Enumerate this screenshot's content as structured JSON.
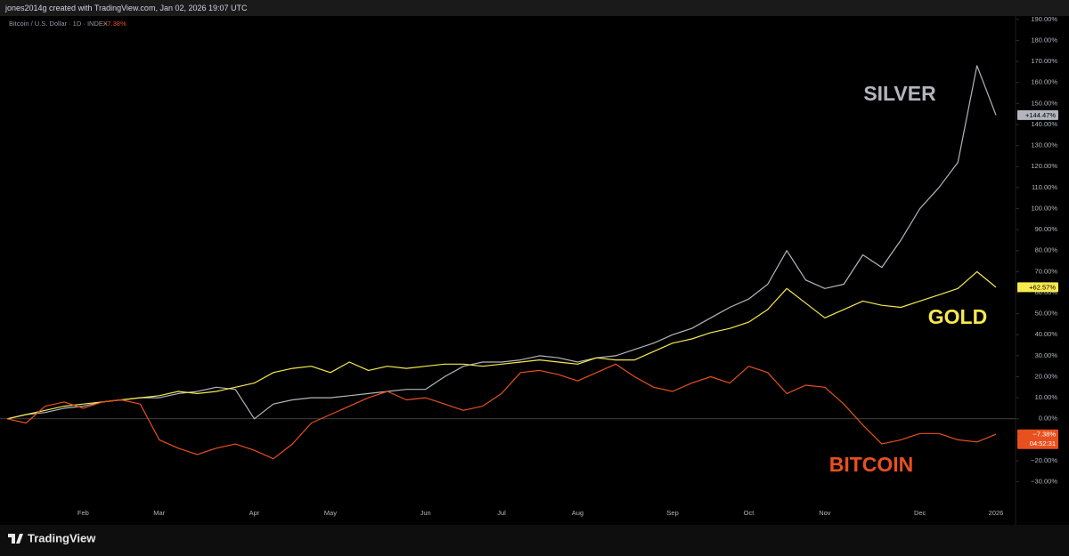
{
  "header": {
    "credit": "jones2014g created with TradingView.com, Jan 02, 2026 19:07 UTC",
    "symbol": "Bitcoin / U.S. Dollar · 1D · INDEX",
    "symbol_change": "−7.38%"
  },
  "footer": {
    "brand": "TradingView"
  },
  "chart_data": {
    "type": "line",
    "categories": [
      null,
      null,
      null,
      null,
      "Feb",
      null,
      null,
      null,
      "Mar",
      null,
      null,
      null,
      null,
      "Apr",
      null,
      null,
      null,
      "May",
      null,
      null,
      null,
      null,
      "Jun",
      null,
      null,
      null,
      "Jul",
      null,
      null,
      null,
      "Aug",
      null,
      null,
      null,
      null,
      "Sep",
      null,
      null,
      null,
      "Oct",
      null,
      null,
      null,
      "Nov",
      null,
      null,
      null,
      null,
      "Dec",
      null,
      null,
      null,
      "2026"
    ],
    "series": [
      {
        "name": "SILVER",
        "color": "#b2b5be",
        "values": [
          0,
          2,
          3,
          5,
          6,
          8,
          9,
          10,
          10,
          12,
          13,
          15,
          14,
          0,
          7,
          9,
          10,
          10,
          11,
          12,
          13,
          14,
          14,
          20,
          25,
          27,
          27,
          28,
          30,
          29,
          27,
          29,
          30,
          33,
          36,
          40,
          43,
          48,
          53,
          57,
          64,
          80,
          66,
          62,
          64,
          78,
          72,
          85,
          100,
          110,
          122,
          168,
          144.47
        ],
        "value_labels": [
          null,
          null,
          null,
          null,
          null,
          null,
          null,
          null,
          null,
          null,
          null,
          null,
          null,
          null,
          null,
          null,
          null,
          null,
          null,
          null,
          null,
          null,
          null,
          null,
          null,
          null,
          null,
          null,
          null,
          null,
          null,
          null,
          null,
          null,
          null,
          null,
          null,
          null,
          null,
          null,
          null,
          null,
          null,
          null,
          null,
          null,
          null,
          null,
          null,
          null,
          null,
          null,
          "+144.47%"
        ]
      },
      {
        "name": "GOLD",
        "color": "#f7e94f",
        "values": [
          0,
          2,
          4,
          6,
          7,
          8,
          9,
          10,
          11,
          13,
          12,
          13,
          15,
          17,
          22,
          24,
          25,
          22,
          27,
          23,
          25,
          24,
          25,
          26,
          26,
          25,
          26,
          27,
          28,
          27,
          26,
          29,
          28,
          28,
          32,
          36,
          38,
          41,
          43,
          46,
          52,
          62,
          55,
          48,
          52,
          56,
          54,
          53,
          56,
          59,
          62,
          70,
          62.57
        ],
        "value_labels": [
          null,
          null,
          null,
          null,
          null,
          null,
          null,
          null,
          null,
          null,
          null,
          null,
          null,
          null,
          null,
          null,
          null,
          null,
          null,
          null,
          null,
          null,
          null,
          null,
          null,
          null,
          null,
          null,
          null,
          null,
          null,
          null,
          null,
          null,
          null,
          null,
          null,
          null,
          null,
          null,
          null,
          null,
          null,
          null,
          null,
          null,
          null,
          null,
          null,
          null,
          null,
          null,
          "+62.57%"
        ]
      },
      {
        "name": "BITCOIN",
        "color": "#e8501e",
        "values": [
          0,
          -2,
          6,
          8,
          5,
          8,
          9,
          7,
          -10,
          -14,
          -17,
          -14,
          -12,
          -15,
          -19,
          -12,
          -2,
          2,
          6,
          10,
          13,
          9,
          10,
          7,
          4,
          6,
          12,
          22,
          23,
          21,
          18,
          22,
          26,
          20,
          15,
          13,
          17,
          20,
          17,
          25,
          22,
          12,
          16,
          15,
          7,
          -3,
          -12,
          -10,
          -7,
          -7,
          -10,
          -11,
          -7.38
        ],
        "value_labels": [
          null,
          null,
          null,
          null,
          null,
          null,
          null,
          null,
          null,
          null,
          null,
          null,
          null,
          null,
          null,
          null,
          null,
          null,
          null,
          null,
          null,
          null,
          null,
          null,
          null,
          null,
          null,
          null,
          null,
          null,
          null,
          null,
          null,
          null,
          null,
          null,
          null,
          null,
          null,
          null,
          null,
          null,
          null,
          null,
          null,
          null,
          null,
          null,
          null,
          null,
          null,
          null,
          "−7.38%"
        ]
      }
    ],
    "countdown": "04:52:31",
    "ylim": [
      -42,
      195
    ],
    "yticks": [
      {
        "value": -30,
        "label": "−30.00%"
      },
      {
        "value": -20,
        "label": "−20.00%"
      },
      {
        "value": -10,
        "label": "−10.00%"
      },
      {
        "value": 0,
        "label": "0.00%"
      },
      {
        "value": 10,
        "label": "10.00%"
      },
      {
        "value": 20,
        "label": "20.00%"
      },
      {
        "value": 30,
        "label": "30.00%"
      },
      {
        "value": 40,
        "label": "40.00%"
      },
      {
        "value": 50,
        "label": "50.00%"
      },
      {
        "value": 60,
        "label": "60.00%"
      },
      {
        "value": 70,
        "label": "70.00%"
      },
      {
        "value": 80,
        "label": "80.00%"
      },
      {
        "value": 90,
        "label": "90.00%"
      },
      {
        "value": 100,
        "label": "100.00%"
      },
      {
        "value": 110,
        "label": "110.00%"
      },
      {
        "value": 120,
        "label": "120.00%"
      },
      {
        "value": 130,
        "label": "130.00%"
      },
      {
        "value": 140,
        "label": "140.00%"
      },
      {
        "value": 150,
        "label": "150.00%"
      },
      {
        "value": 160,
        "label": "160.00%"
      },
      {
        "value": 170,
        "label": "170.00%"
      },
      {
        "value": 180,
        "label": "180.00%"
      },
      {
        "value": 190,
        "label": "190.00%"
      }
    ]
  }
}
